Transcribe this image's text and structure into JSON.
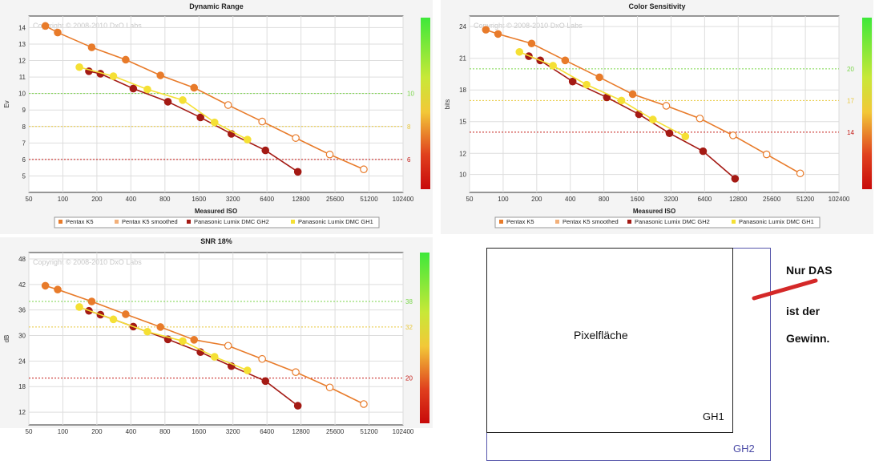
{
  "chart_data": [
    {
      "type": "line",
      "title": "Dynamic Range",
      "watermark": "Copyright © 2008-2010 DxO Labs",
      "xlabel": "Measured ISO",
      "ylabel": "Ev",
      "x_ticks": [
        "50",
        "100",
        "200",
        "400",
        "800",
        "1600",
        "3200",
        "6400",
        "12800",
        "25600",
        "51200",
        "102400"
      ],
      "y_ticks": [
        5,
        6,
        7,
        8,
        9,
        10,
        11,
        12,
        13,
        14
      ],
      "ylim": [
        4,
        14.7
      ],
      "series": [
        {
          "name": "Pentax K5",
          "color": "#e87b2a",
          "points": [
            [
              70,
              14.1
            ],
            [
              90,
              13.7
            ],
            [
              180,
              12.8
            ],
            [
              360,
              12.05
            ],
            [
              730,
              11.1
            ],
            [
              1450,
              10.35
            ],
            [
              2900,
              9.3
            ],
            [
              5800,
              8.3
            ],
            [
              11500,
              7.3
            ],
            [
              23000,
              6.3
            ],
            [
              46000,
              5.4
            ]
          ],
          "hollow_from": 6
        },
        {
          "name": "Panasonic Lumix DMC GH2",
          "color": "#a41a14",
          "points": [
            [
              170,
              11.35
            ],
            [
              215,
              11.2
            ],
            [
              420,
              10.3
            ],
            [
              850,
              9.5
            ],
            [
              1650,
              8.55
            ],
            [
              3100,
              7.55
            ],
            [
              6200,
              6.55
            ],
            [
              12000,
              5.25
            ]
          ],
          "hollow_from": 99
        },
        {
          "name": "Panasonic Lumix DMC GH1",
          "color": "#f5e034",
          "points": [
            [
              140,
              11.6
            ],
            [
              280,
              11.05
            ],
            [
              560,
              10.25
            ],
            [
              1150,
              9.6
            ],
            [
              2200,
              8.25
            ],
            [
              4300,
              7.2
            ]
          ],
          "hollow_from": 99
        }
      ],
      "ref_lines": [
        {
          "value": 10,
          "label": "10",
          "color": "#7ad64a"
        },
        {
          "value": 8,
          "label": "8",
          "color": "#e8c73a"
        },
        {
          "value": 6,
          "label": "6",
          "color": "#c41a14"
        }
      ]
    },
    {
      "type": "line",
      "title": "Color Sensitivity",
      "watermark": "Copyright © 2008-2010 DxO Labs",
      "xlabel": "Measured ISO",
      "ylabel": "bits",
      "x_ticks": [
        "50",
        "100",
        "200",
        "400",
        "800",
        "1600",
        "3200",
        "6400",
        "12800",
        "25600",
        "51200",
        "102400"
      ],
      "y_ticks": [
        10,
        12,
        15,
        18,
        21,
        24
      ],
      "ylim": [
        8.3,
        25
      ],
      "series": [
        {
          "name": "Pentax K5",
          "color": "#e87b2a",
          "points": [
            [
              70,
              23.7
            ],
            [
              90,
              23.3
            ],
            [
              180,
              22.4
            ],
            [
              360,
              20.8
            ],
            [
              730,
              19.2
            ],
            [
              1450,
              17.6
            ],
            [
              2900,
              16.5
            ],
            [
              5800,
              15.3
            ],
            [
              11500,
              13.7
            ],
            [
              23000,
              11.9
            ],
            [
              46000,
              10.1
            ]
          ],
          "hollow_from": 6
        },
        {
          "name": "Panasonic Lumix DMC GH2",
          "color": "#a41a14",
          "points": [
            [
              170,
              21.2
            ],
            [
              215,
              20.8
            ],
            [
              420,
              18.8
            ],
            [
              850,
              17.3
            ],
            [
              1650,
              15.7
            ],
            [
              3100,
              13.9
            ],
            [
              6200,
              12.2
            ],
            [
              12000,
              9.6
            ]
          ],
          "hollow_from": 99
        },
        {
          "name": "Panasonic Lumix DMC GH1",
          "color": "#f5e034",
          "points": [
            [
              140,
              21.6
            ],
            [
              280,
              20.3
            ],
            [
              560,
              18.5
            ],
            [
              1150,
              17.0
            ],
            [
              2200,
              15.2
            ],
            [
              4300,
              13.6
            ]
          ],
          "hollow_from": 99
        }
      ],
      "ref_lines": [
        {
          "value": 20,
          "label": "20",
          "color": "#7ad64a"
        },
        {
          "value": 17,
          "label": "17",
          "color": "#e8c73a"
        },
        {
          "value": 14,
          "label": "14",
          "color": "#c41a14"
        }
      ]
    },
    {
      "type": "line",
      "title": "SNR 18%",
      "watermark": "Copyright © 2008-2010 DxO Labs",
      "xlabel": "",
      "ylabel": "dB",
      "x_ticks": [
        "50",
        "100",
        "200",
        "400",
        "800",
        "1600",
        "3200",
        "6400",
        "12800",
        "25600",
        "51200",
        "102400"
      ],
      "y_ticks": [
        12,
        18,
        24,
        30,
        36,
        42,
        48
      ],
      "ylim": [
        9,
        49.5
      ],
      "series": [
        {
          "name": "Pentax K5",
          "color": "#e87b2a",
          "points": [
            [
              70,
              41.7
            ],
            [
              90,
              40.8
            ],
            [
              180,
              38.0
            ],
            [
              360,
              35.0
            ],
            [
              730,
              32.0
            ],
            [
              1450,
              29.0
            ],
            [
              2900,
              27.6
            ],
            [
              5800,
              24.5
            ],
            [
              11500,
              21.4
            ],
            [
              23000,
              17.8
            ],
            [
              46000,
              13.9
            ]
          ],
          "hollow_from": 6
        },
        {
          "name": "Panasonic Lumix DMC GH2",
          "color": "#a41a14",
          "points": [
            [
              170,
              35.8
            ],
            [
              215,
              34.9
            ],
            [
              420,
              32.1
            ],
            [
              850,
              29.1
            ],
            [
              1650,
              26.1
            ],
            [
              3100,
              22.8
            ],
            [
              6200,
              19.3
            ],
            [
              12000,
              13.5
            ]
          ],
          "hollow_from": 99
        },
        {
          "name": "Panasonic Lumix DMC GH1",
          "color": "#f5e034",
          "points": [
            [
              140,
              36.7
            ],
            [
              280,
              33.8
            ],
            [
              560,
              30.9
            ],
            [
              1150,
              28.7
            ],
            [
              2200,
              25.0
            ],
            [
              4300,
              21.8
            ]
          ],
          "hollow_from": 99
        }
      ],
      "ref_lines": [
        {
          "value": 38,
          "label": "38",
          "color": "#7ad64a"
        },
        {
          "value": 32,
          "label": "32",
          "color": "#e8c73a"
        },
        {
          "value": 20,
          "label": "20",
          "color": "#c41a14"
        }
      ]
    }
  ],
  "legend": [
    {
      "name": "Pentax K5",
      "color": "#e87b2a"
    },
    {
      "name": "Pentax K5 smoothed",
      "color": "#f2b07a"
    },
    {
      "name": "Panasonic Lumix DMC GH2",
      "color": "#a41a14"
    },
    {
      "name": "Panasonic Lumix DMC GH1",
      "color": "#f5e034"
    }
  ],
  "diagram": {
    "inner_label": "Pixelfläche",
    "gh1_label": "GH1",
    "gh2_label": "GH2",
    "note_line1": "Nur DAS",
    "note_line2": "ist der",
    "note_line3": "Gewinn."
  }
}
